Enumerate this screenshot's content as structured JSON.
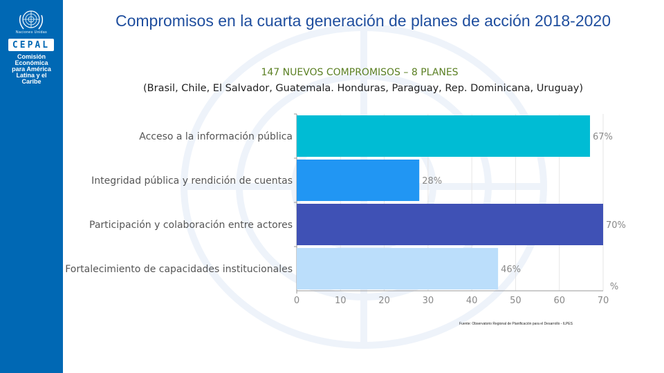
{
  "branding": {
    "un_label": "Naciones Unidas",
    "cepal": "CEPAL",
    "org_lines": [
      "Comisión",
      "Económica",
      "para América",
      "Latina y el",
      "Caribe"
    ]
  },
  "title": "Compromisos en la cuarta generación de planes de acción 2018-2020",
  "subtitle": "147 NUEVOS COMPROMISOS – 8 PLANES",
  "countries": "(Brasil, Chile, El Salvador, Guatemala. Honduras, Paraguay, Rep. Dominicana, Uruguay)",
  "source": "Fuente: Observatorio Regional de Planificación para el Desarrollo - ILPES",
  "colors": {
    "sidebar": "#0068b4",
    "title": "#1f4e9e",
    "subtitle": "#5a7f22"
  },
  "chart_data": {
    "type": "bar",
    "orientation": "horizontal",
    "categories": [
      "Acceso a la información pública",
      "Integridad pública y rendición de cuentas",
      "Participación y colaboración entre actores",
      "Fortalecimiento de capacidades institucionales"
    ],
    "values": [
      67,
      28,
      70,
      46
    ],
    "value_labels": [
      "67%",
      "28%",
      "70%",
      "46%"
    ],
    "bar_colors": [
      "#00bcd4",
      "#2196f3",
      "#3f51b5",
      "#bbdefb"
    ],
    "xlim": [
      0,
      70
    ],
    "xticks": [
      0,
      10,
      20,
      30,
      40,
      50,
      60,
      70
    ],
    "xticks_labels": [
      "0",
      "10",
      "20",
      "30",
      "40",
      "50",
      "60",
      "70"
    ],
    "xunit": "%",
    "grid": true
  }
}
